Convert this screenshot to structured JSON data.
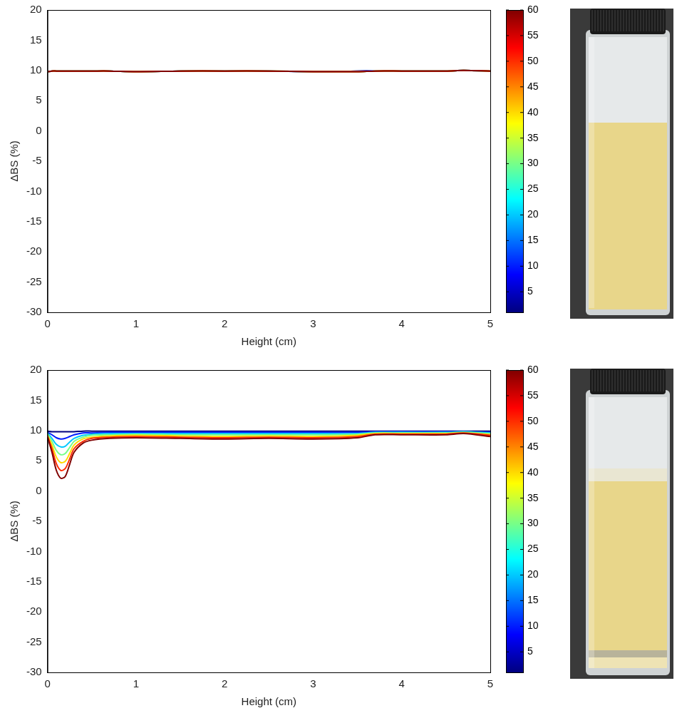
{
  "chart_data": [
    {
      "type": "line",
      "xlabel": "Height (cm)",
      "ylabel": "ΔBS (%)",
      "grid": false,
      "xlim": [
        0,
        5
      ],
      "xticks": [
        0,
        1,
        2,
        3,
        4,
        5
      ],
      "ylim": [
        -30,
        20
      ],
      "yticks": [
        -30,
        -25,
        -20,
        -15,
        -10,
        -5,
        0,
        5,
        10,
        15,
        20
      ],
      "colorbar": {
        "range": [
          1,
          60
        ],
        "ticks": [
          5,
          10,
          15,
          20,
          25,
          30,
          35,
          40,
          45,
          50,
          55,
          60
        ]
      },
      "x": [
        0,
        0.05,
        0.1,
        0.15,
        0.2,
        0.25,
        0.3,
        0.4,
        0.5,
        0.7,
        1,
        1.5,
        2,
        2.5,
        3,
        3.5,
        3.7,
        4,
        4.5,
        4.7,
        5
      ],
      "series": [
        {
          "time": 1,
          "values": [
            9.8,
            9.9,
            9.9,
            9.9,
            9.9,
            9.9,
            9.9,
            9.9,
            9.9,
            9.9,
            9.8,
            9.9,
            9.9,
            9.9,
            9.8,
            9.9,
            9.9,
            9.9,
            9.9,
            10.0,
            9.9
          ]
        },
        {
          "time": 10,
          "values": [
            9.8,
            9.9,
            9.9,
            9.9,
            9.9,
            9.9,
            9.9,
            9.9,
            9.9,
            9.9,
            9.8,
            9.9,
            9.9,
            9.9,
            9.8,
            9.9,
            9.9,
            9.9,
            9.9,
            10.0,
            9.9
          ]
        },
        {
          "time": 20,
          "values": [
            9.8,
            9.9,
            9.9,
            9.9,
            9.9,
            9.9,
            9.9,
            9.9,
            9.9,
            9.9,
            9.8,
            9.9,
            9.9,
            9.9,
            9.8,
            9.8,
            9.9,
            9.9,
            9.9,
            10.0,
            9.9
          ]
        },
        {
          "time": 30,
          "values": [
            9.8,
            9.9,
            9.9,
            9.9,
            9.9,
            9.9,
            9.9,
            9.9,
            9.9,
            9.9,
            9.8,
            9.9,
            9.9,
            9.9,
            9.8,
            9.8,
            9.9,
            9.9,
            9.9,
            10.0,
            9.9
          ]
        },
        {
          "time": 40,
          "values": [
            9.8,
            9.9,
            9.9,
            9.9,
            9.9,
            9.9,
            9.9,
            9.9,
            9.9,
            9.9,
            9.8,
            9.9,
            9.9,
            9.9,
            9.8,
            9.8,
            9.9,
            9.9,
            9.9,
            10.0,
            9.9
          ]
        },
        {
          "time": 50,
          "values": [
            9.8,
            9.9,
            9.9,
            9.9,
            9.9,
            9.9,
            9.9,
            9.9,
            9.9,
            9.9,
            9.8,
            9.9,
            9.9,
            9.9,
            9.8,
            9.8,
            9.9,
            9.9,
            9.9,
            10.0,
            9.9
          ]
        },
        {
          "time": 60,
          "values": [
            9.8,
            9.9,
            9.9,
            9.9,
            9.9,
            9.9,
            9.9,
            9.9,
            9.9,
            9.9,
            9.8,
            9.9,
            9.9,
            9.9,
            9.8,
            9.8,
            9.9,
            9.9,
            9.9,
            10.0,
            9.9
          ]
        }
      ]
    },
    {
      "type": "line",
      "xlabel": "Height (cm)",
      "ylabel": "ΔBS (%)",
      "grid": false,
      "xlim": [
        0,
        5
      ],
      "xticks": [
        0,
        1,
        2,
        3,
        4,
        5
      ],
      "ylim": [
        -30,
        20
      ],
      "yticks": [
        -30,
        -25,
        -20,
        -15,
        -10,
        -5,
        0,
        5,
        10,
        15,
        20
      ],
      "colorbar": {
        "range": [
          1,
          60
        ],
        "ticks": [
          5,
          10,
          15,
          20,
          25,
          30,
          35,
          40,
          45,
          50,
          55,
          60
        ]
      },
      "x": [
        0,
        0.05,
        0.1,
        0.15,
        0.2,
        0.25,
        0.3,
        0.4,
        0.5,
        0.7,
        1,
        1.5,
        2,
        2.5,
        3,
        3.5,
        3.7,
        4,
        4.5,
        4.7,
        5
      ],
      "series": [
        {
          "time": 1,
          "values": [
            9.9,
            9.8,
            9.8,
            9.8,
            9.8,
            9.8,
            9.8,
            9.9,
            9.9,
            9.9,
            9.9,
            9.9,
            9.9,
            9.9,
            9.9,
            9.9,
            9.9,
            9.9,
            9.9,
            9.9,
            9.9
          ]
        },
        {
          "time": 10,
          "values": [
            9.7,
            9.3,
            8.8,
            8.6,
            8.7,
            9.0,
            9.3,
            9.6,
            9.6,
            9.7,
            9.7,
            9.7,
            9.7,
            9.7,
            9.7,
            9.7,
            9.8,
            9.8,
            9.8,
            9.8,
            9.7
          ]
        },
        {
          "time": 20,
          "values": [
            9.6,
            8.7,
            7.7,
            7.3,
            7.4,
            8.1,
            8.7,
            9.2,
            9.4,
            9.5,
            9.5,
            9.5,
            9.5,
            9.5,
            9.5,
            9.5,
            9.7,
            9.7,
            9.7,
            9.8,
            9.6
          ]
        },
        {
          "time": 30,
          "values": [
            9.4,
            8.2,
            6.7,
            6.0,
            6.2,
            7.2,
            8.2,
            8.9,
            9.2,
            9.3,
            9.4,
            9.3,
            9.3,
            9.3,
            9.3,
            9.4,
            9.6,
            9.6,
            9.6,
            9.7,
            9.5
          ]
        },
        {
          "time": 40,
          "values": [
            9.2,
            7.6,
            5.6,
            4.7,
            4.9,
            6.2,
            7.6,
            8.6,
            8.9,
            9.1,
            9.2,
            9.1,
            9.0,
            9.1,
            9.0,
            9.2,
            9.5,
            9.5,
            9.5,
            9.6,
            9.3
          ]
        },
        {
          "time": 50,
          "values": [
            9.1,
            7.0,
            4.5,
            3.4,
            3.7,
            5.3,
            7.0,
            8.2,
            8.7,
            8.9,
            9.0,
            8.9,
            8.8,
            8.9,
            8.8,
            9.0,
            9.4,
            9.4,
            9.4,
            9.6,
            9.2
          ]
        },
        {
          "time": 60,
          "values": [
            8.9,
            6.4,
            3.4,
            2.1,
            2.4,
            4.4,
            6.4,
            7.9,
            8.4,
            8.7,
            8.8,
            8.7,
            8.6,
            8.7,
            8.6,
            8.8,
            9.3,
            9.3,
            9.3,
            9.5,
            9.0
          ]
        }
      ]
    }
  ]
}
